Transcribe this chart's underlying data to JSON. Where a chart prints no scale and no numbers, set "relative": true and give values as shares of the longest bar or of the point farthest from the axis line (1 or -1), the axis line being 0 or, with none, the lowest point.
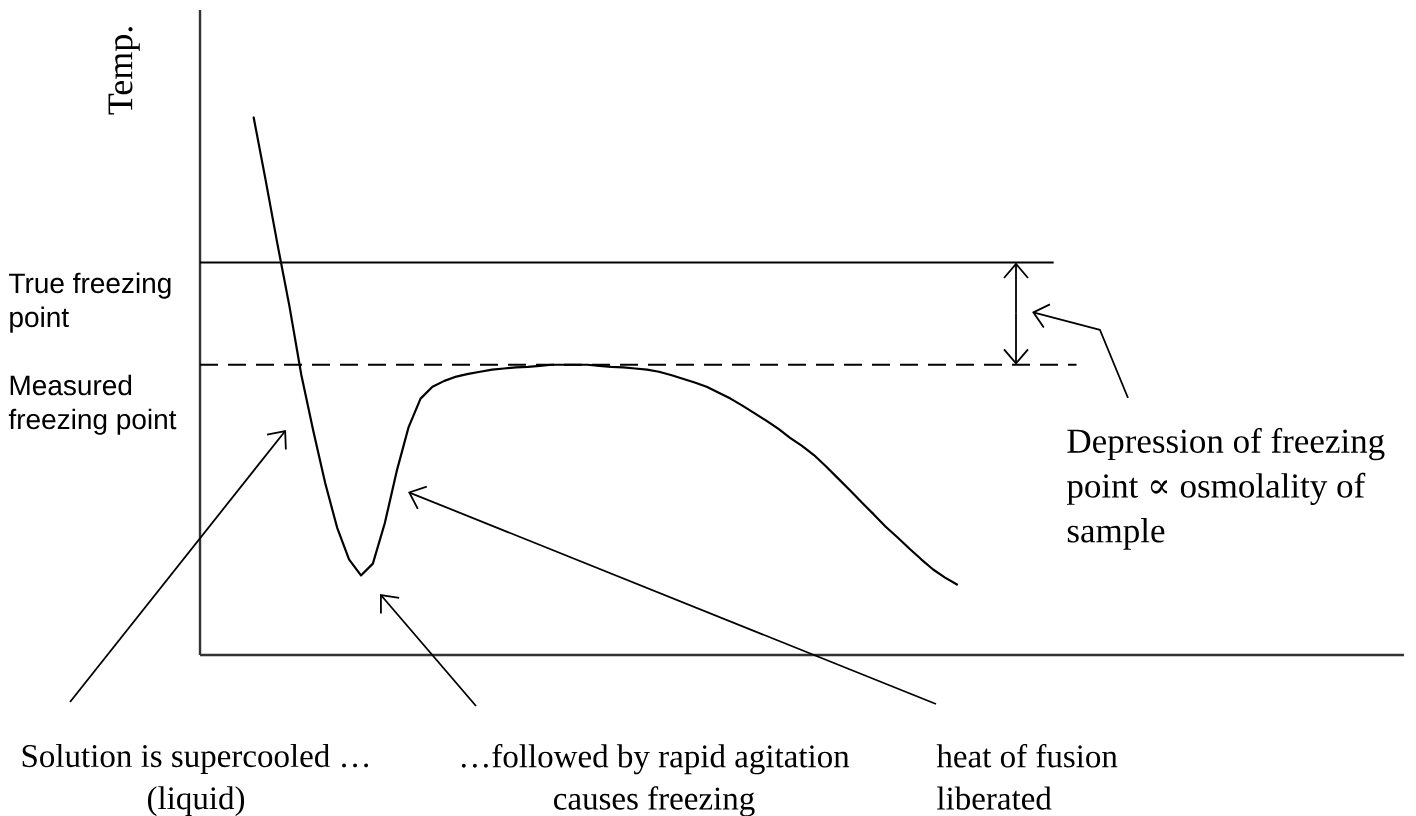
{
  "chart_data": {
    "type": "line",
    "relative": true,
    "ylabel": "Temp.",
    "categories": [
      null,
      null,
      null,
      null,
      null,
      null,
      null,
      null,
      null,
      null,
      null,
      null,
      null,
      null,
      null,
      null,
      null,
      null,
      null,
      null,
      null,
      null,
      null,
      null,
      null,
      null,
      null,
      null,
      null,
      null,
      null,
      null,
      null,
      null,
      null,
      null,
      null,
      null,
      null,
      null,
      null,
      null,
      null,
      null,
      null,
      null,
      null,
      null,
      null,
      null,
      null,
      null,
      null,
      null,
      null,
      null,
      null,
      null,
      null,
      null,
      null,
      null,
      null,
      null,
      null,
      null,
      null,
      null,
      null,
      null,
      null,
      null,
      null,
      null,
      null,
      null,
      null,
      null,
      null,
      null,
      null,
      null,
      null,
      null,
      null,
      null,
      null,
      null,
      null,
      null,
      null,
      null,
      null,
      null,
      null,
      null,
      null,
      null,
      null,
      null,
      null
    ],
    "series": [
      {
        "color": "#000000",
        "values": [
          null,
          null,
          null,
          null,
          1.0,
          0.884,
          0.764,
          0.649,
          0.521,
          0.417,
          0.32,
          0.237,
          0.178,
          0.148,
          0.17,
          0.245,
          0.342,
          0.424,
          0.477,
          0.499,
          0.51,
          0.518,
          0.523,
          0.527,
          0.531,
          0.533,
          0.535,
          0.536,
          0.538,
          0.54,
          0.54,
          0.54,
          0.54,
          0.538,
          0.536,
          0.535,
          0.533,
          0.531,
          0.527,
          0.521,
          0.514,
          0.507,
          0.499,
          0.488,
          0.477,
          0.464,
          0.45,
          0.436,
          0.421,
          0.404,
          0.389,
          0.372,
          0.351,
          0.329,
          0.307,
          0.284,
          0.262,
          0.239,
          0.219,
          0.198,
          0.178,
          0.159,
          0.144,
          0.131,
          null,
          null,
          null,
          null,
          null,
          null,
          null,
          null,
          null,
          null,
          null,
          null,
          null,
          null,
          null,
          null,
          null,
          null,
          null,
          null,
          null,
          null,
          null,
          null,
          null,
          null,
          null,
          null,
          null,
          null,
          null,
          null,
          null,
          null,
          null,
          null,
          null
        ]
      }
    ],
    "ref_lines": [
      {
        "axis": "y",
        "value": 0.73,
        "label": "True freezing point",
        "color": "#000000",
        "line_style": "solid"
      },
      {
        "axis": "y",
        "value": 0.54,
        "label": "Measured freezing point",
        "color": "#000000",
        "line_style": "dashed"
      }
    ],
    "annotations": [
      "Solution is supercooled … (liquid)",
      "…followed by rapid agitation causes freezing",
      "heat of fusion liberated",
      "Depression of freezing point ∝ osmolality of sample"
    ]
  }
}
